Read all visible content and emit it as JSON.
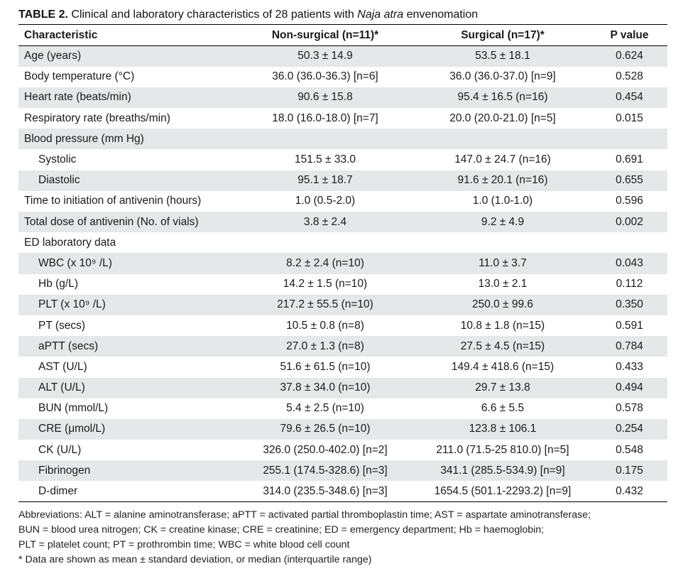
{
  "caption": {
    "label": "TABLE 2.",
    "text_before": "Clinical and laboratory characteristics of 28 patients with",
    "text_italic": "Naja atra",
    "text_after": "envenomation"
  },
  "headers": {
    "characteristic": "Characteristic",
    "non_surgical": "Non-surgical (n=11)*",
    "surgical": "Surgical (n=17)*",
    "p_value": "P value"
  },
  "rows": [
    {
      "label": "Age (years)",
      "non_surgical": "50.3 ± 14.9",
      "surgical": "53.5 ± 18.1",
      "p": "0.624",
      "indent": false,
      "shade": true
    },
    {
      "label": "Body temperature (°C)",
      "non_surgical": "36.0 (36.0-36.3) [n=6]",
      "surgical": "36.0 (36.0-37.0) [n=9]",
      "p": "0.528",
      "indent": false,
      "shade": false
    },
    {
      "label": "Heart rate (beats/min)",
      "non_surgical": "90.6 ± 15.8",
      "surgical": "95.4 ± 16.5 (n=16)",
      "p": "0.454",
      "indent": false,
      "shade": true
    },
    {
      "label": "Respiratory rate (breaths/min)",
      "non_surgical": "18.0 (16.0-18.0) [n=7]",
      "surgical": "20.0 (20.0-21.0) [n=5]",
      "p": "0.015",
      "indent": false,
      "shade": false
    },
    {
      "label": "Blood pressure (mm Hg)",
      "non_surgical": "",
      "surgical": "",
      "p": "",
      "indent": false,
      "shade": true
    },
    {
      "label": "Systolic",
      "non_surgical": "151.5 ± 33.0",
      "surgical": "147.0 ± 24.7 (n=16)",
      "p": "0.691",
      "indent": true,
      "shade": false
    },
    {
      "label": "Diastolic",
      "non_surgical": "95.1 ± 18.7",
      "surgical": "91.6 ± 20.1 (n=16)",
      "p": "0.655",
      "indent": true,
      "shade": true
    },
    {
      "label": "Time to initiation of antivenin (hours)",
      "non_surgical": "1.0 (0.5-2.0)",
      "surgical": "1.0 (1.0-1.0)",
      "p": "0.596",
      "indent": false,
      "shade": false
    },
    {
      "label": "Total dose of antivenin (No. of vials)",
      "non_surgical": "3.8 ± 2.4",
      "surgical": "9.2 ± 4.9",
      "p": "0.002",
      "indent": false,
      "shade": true
    },
    {
      "label": "ED laboratory data",
      "non_surgical": "",
      "surgical": "",
      "p": "",
      "indent": false,
      "shade": false
    },
    {
      "label": "WBC (x 10⁹ /L)",
      "non_surgical": "8.2 ± 2.4 (n=10)",
      "surgical": "11.0 ± 3.7",
      "p": "0.043",
      "indent": true,
      "shade": true
    },
    {
      "label": "Hb (g/L)",
      "non_surgical": "14.2 ± 1.5 (n=10)",
      "surgical": "13.0 ± 2.1",
      "p": "0.112",
      "indent": true,
      "shade": false
    },
    {
      "label": "PLT (x 10⁹ /L)",
      "non_surgical": "217.2 ± 55.5 (n=10)",
      "surgical": "250.0 ± 99.6",
      "p": "0.350",
      "indent": true,
      "shade": true
    },
    {
      "label": "PT (secs)",
      "non_surgical": "10.5 ± 0.8 (n=8)",
      "surgical": "10.8 ± 1.8 (n=15)",
      "p": "0.591",
      "indent": true,
      "shade": false
    },
    {
      "label": "aPTT (secs)",
      "non_surgical": "27.0 ± 1.3 (n=8)",
      "surgical": "27.5 ± 4.5 (n=15)",
      "p": "0.784",
      "indent": true,
      "shade": true
    },
    {
      "label": "AST (U/L)",
      "non_surgical": "51.6 ± 61.5 (n=10)",
      "surgical": "149.4 ± 418.6 (n=15)",
      "p": "0.433",
      "indent": true,
      "shade": false
    },
    {
      "label": "ALT (U/L)",
      "non_surgical": "37.8 ± 34.0 (n=10)",
      "surgical": "29.7 ± 13.8",
      "p": "0.494",
      "indent": true,
      "shade": true
    },
    {
      "label": "BUN (mmol/L)",
      "non_surgical": "5.4 ± 2.5 (n=10)",
      "surgical": "6.6 ± 5.5",
      "p": "0.578",
      "indent": true,
      "shade": false
    },
    {
      "label": "CRE (μmol/L)",
      "non_surgical": "79.6 ± 26.5 (n=10)",
      "surgical": "123.8 ± 106.1",
      "p": "0.254",
      "indent": true,
      "shade": true
    },
    {
      "label": "CK (U/L)",
      "non_surgical": "326.0 (250.0-402.0) [n=2]",
      "surgical": "211.0 (71.5-25 810.0) [n=5]",
      "p": "0.548",
      "indent": true,
      "shade": false
    },
    {
      "label": "Fibrinogen",
      "non_surgical": "255.1 (174.5-328.6) [n=3]",
      "surgical": "341.1 (285.5-534.9) [n=9]",
      "p": "0.175",
      "indent": true,
      "shade": true
    },
    {
      "label": "D-dimer",
      "non_surgical": "314.0  (235.5-348.6) [n=3]",
      "surgical": "1654.5 (501.1-2293.2) [n=9]",
      "p": "0.432",
      "indent": true,
      "shade": false
    }
  ],
  "notes": {
    "abbrev_line1": "Abbreviations: ALT = alanine aminotransferase; aPTT = activated partial thromboplastin time; AST = aspartate aminotransferase;",
    "abbrev_line2": "BUN = blood urea nitrogen; CK = creatine kinase; CRE = creatinine; ED = emergency department; Hb = haemoglobin;",
    "abbrev_line3": "PLT = platelet count; PT = prothrombin time; WBC = white blood cell count",
    "footnote": "*   Data are shown as mean ± standard deviation, or median (interquartile range)"
  }
}
